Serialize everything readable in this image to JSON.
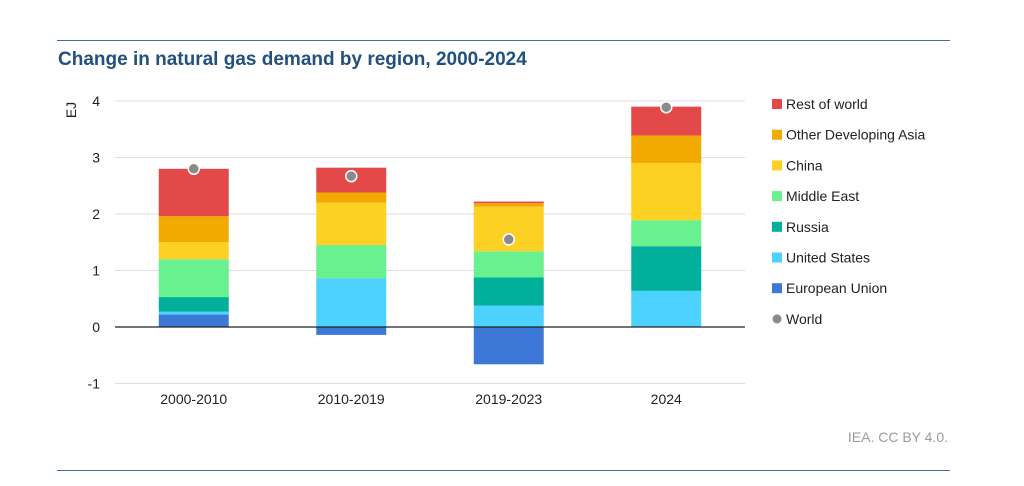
{
  "title": "Change in natural gas demand by region, 2000-2024",
  "credit": "IEA. CC BY 4.0.",
  "chart_data": {
    "type": "bar",
    "stacked": true,
    "title": "Change in natural gas demand by region, 2000-2024",
    "ylabel": "EJ",
    "ylim": [
      -1,
      4
    ],
    "yticks": [
      -1,
      0,
      1,
      2,
      3,
      4
    ],
    "grid": true,
    "legend_position": "right",
    "categories": [
      "2000-2010",
      "2010-2019",
      "2019-2023",
      "2024"
    ],
    "series": [
      {
        "name": "European Union",
        "color": "#3d78d6",
        "values": [
          0.22,
          -0.14,
          -0.66,
          0
        ]
      },
      {
        "name": "United States",
        "color": "#4dd2ff",
        "values": [
          0.05,
          0.86,
          0.38,
          0.64
        ]
      },
      {
        "name": "Russia",
        "color": "#00b09a",
        "values": [
          0.26,
          0,
          0.5,
          0.79
        ]
      },
      {
        "name": "Middle East",
        "color": "#69f08f",
        "values": [
          0.67,
          0.59,
          0.46,
          0.46
        ]
      },
      {
        "name": "China",
        "color": "#fdd024",
        "values": [
          0.3,
          0.75,
          0.79,
          1.01
        ]
      },
      {
        "name": "Other Developing Asia",
        "color": "#f2a900",
        "values": [
          0.46,
          0.18,
          0.06,
          0.49
        ]
      },
      {
        "name": "Rest of world",
        "color": "#e4494a",
        "values": [
          0.84,
          0.44,
          0.03,
          0.51
        ]
      }
    ],
    "world": {
      "name": "World",
      "color": "#8a8a8a",
      "values": [
        2.8,
        2.67,
        1.55,
        3.89
      ]
    },
    "legend_order": [
      "Rest of world",
      "Other Developing Asia",
      "China",
      "Middle East",
      "Russia",
      "United States",
      "European Union",
      "World"
    ]
  }
}
